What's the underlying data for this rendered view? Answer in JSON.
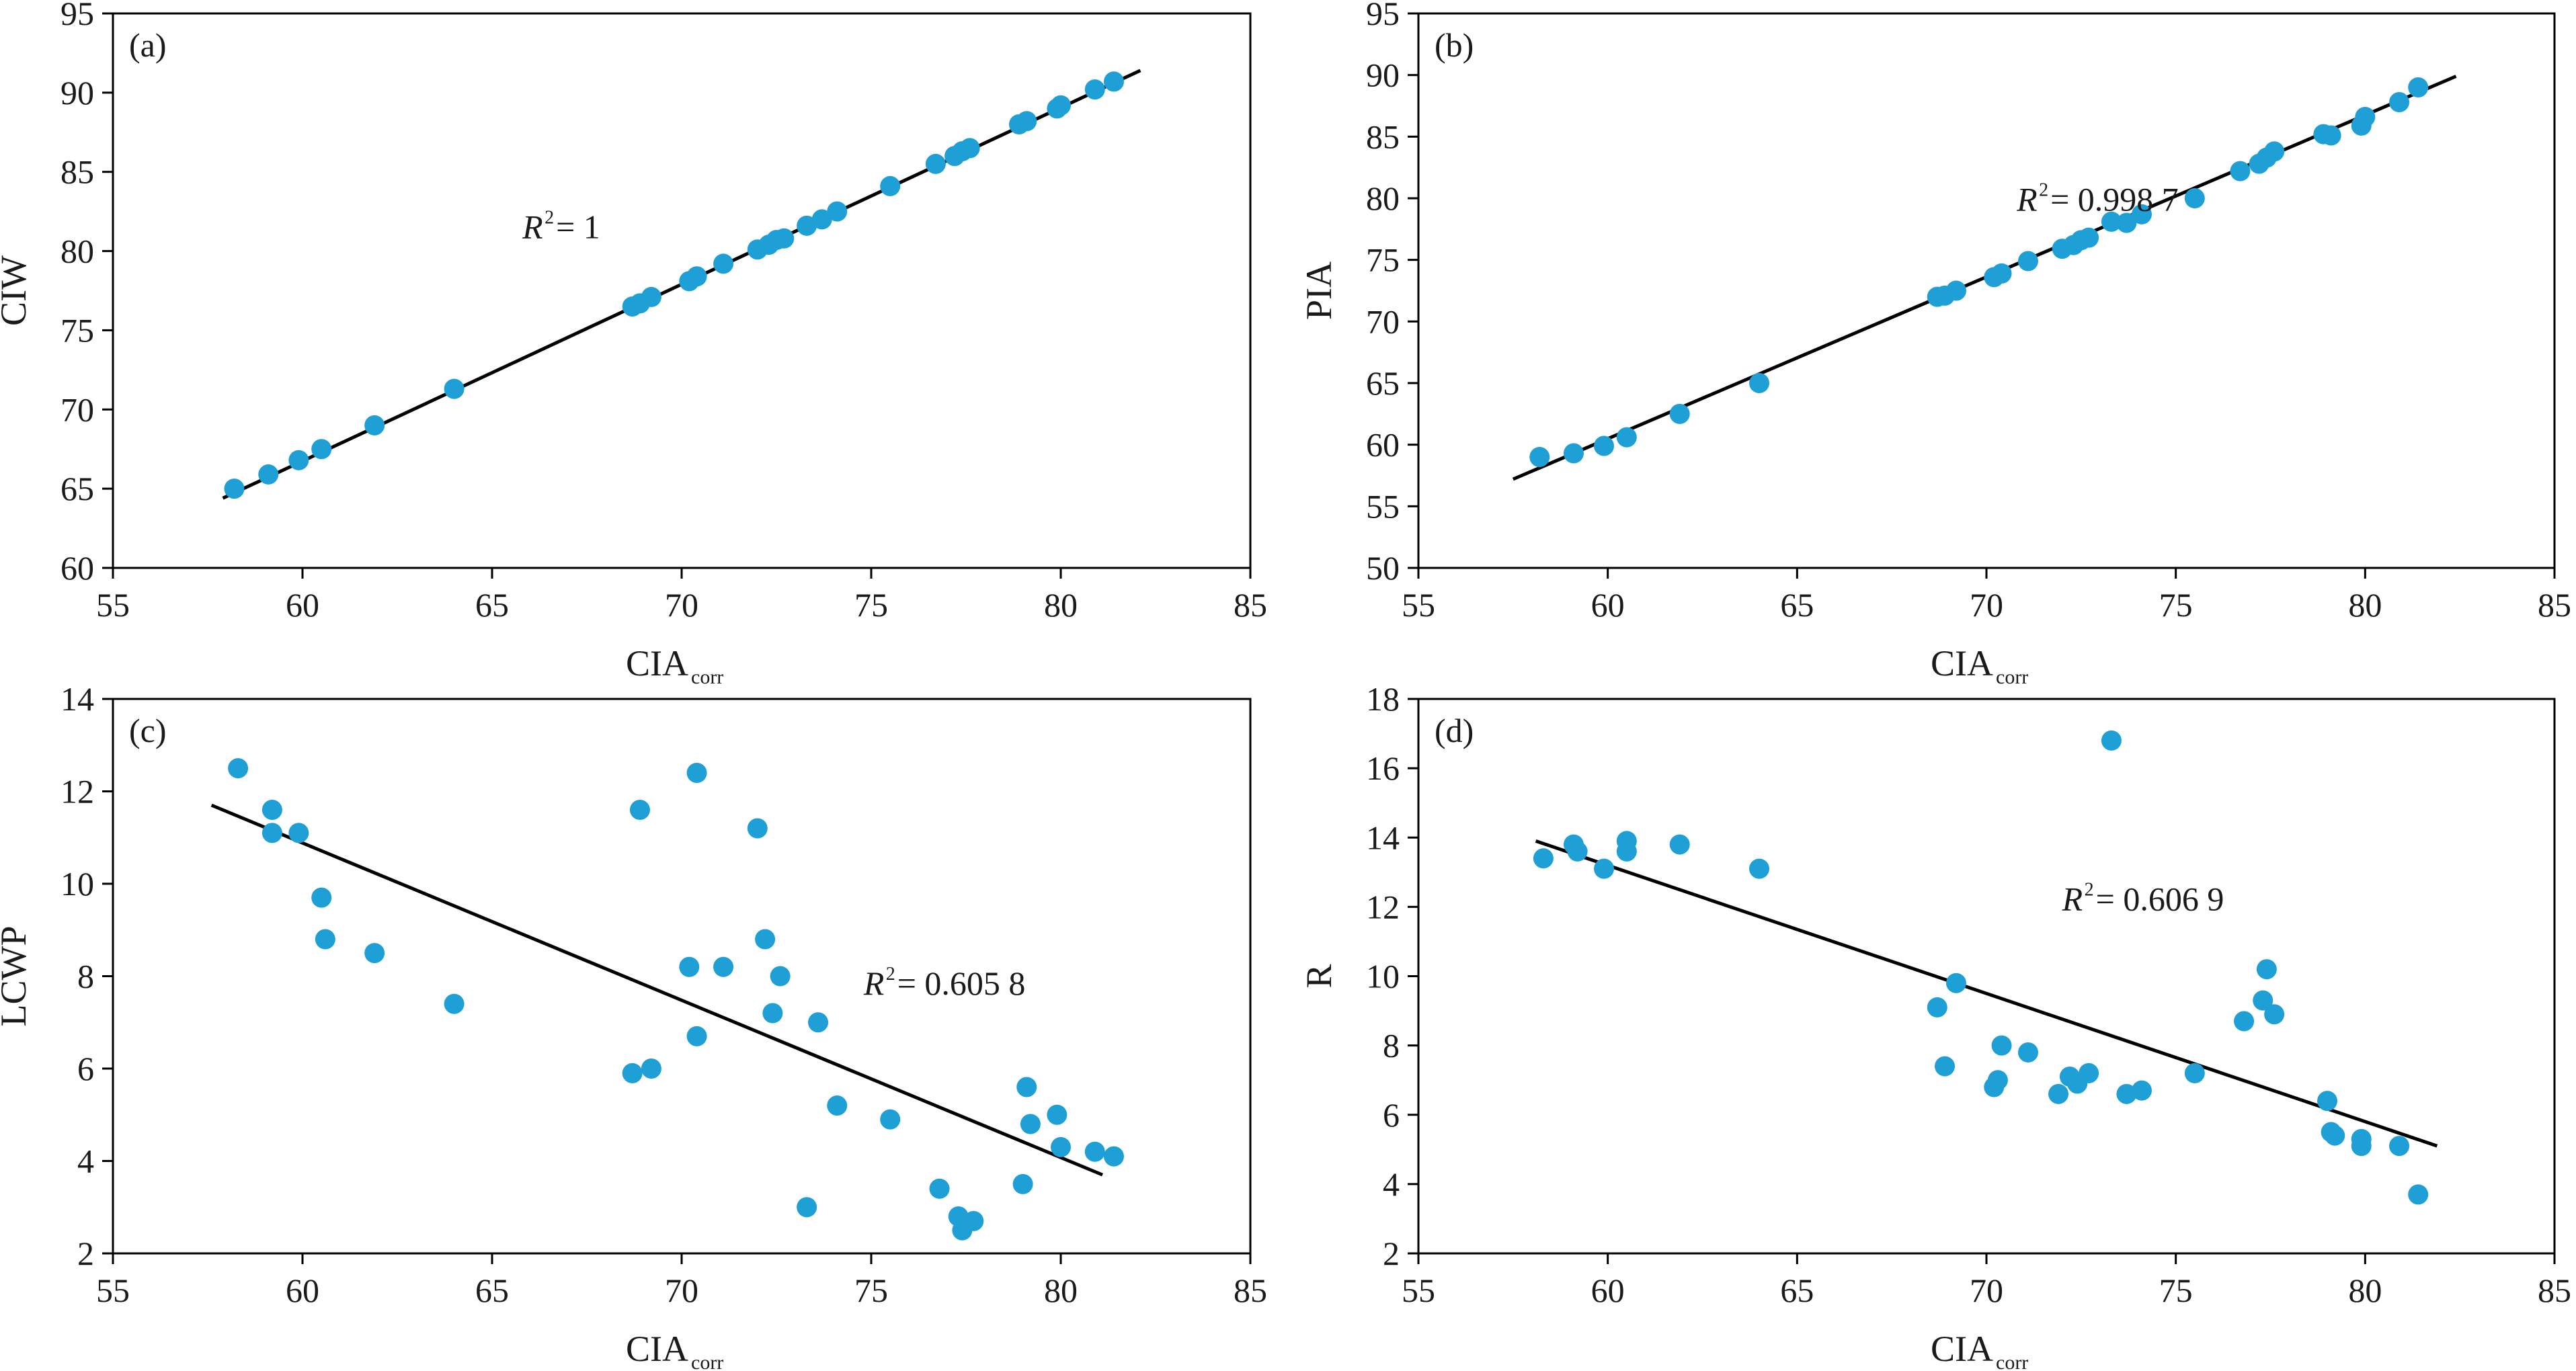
{
  "colors": {
    "point": "#1e9fd6",
    "line": "#000000",
    "frame": "#000000"
  },
  "chart_data": [
    {
      "type": "scatter",
      "panel_label": "(a)",
      "xlabel": "CIA",
      "xlabel_sub": "corr",
      "ylabel": "CIW",
      "xlim": [
        55,
        85
      ],
      "ylim": [
        60,
        95
      ],
      "xticks": [
        55,
        60,
        65,
        70,
        75,
        80,
        85
      ],
      "yticks": [
        60,
        65,
        70,
        75,
        80,
        85,
        90,
        95
      ],
      "r2_prefix": "R",
      "r2_sup": "2",
      "r2_value": "= 1",
      "r2_pos": [
        65.8,
        80.8
      ],
      "fit": [
        [
          57.9,
          64.4
        ],
        [
          82.1,
          91.4
        ]
      ],
      "points": [
        [
          58.2,
          65.0
        ],
        [
          59.1,
          65.9
        ],
        [
          59.9,
          66.8
        ],
        [
          60.5,
          67.5
        ],
        [
          61.9,
          69.0
        ],
        [
          64.0,
          71.3
        ],
        [
          68.7,
          76.5
        ],
        [
          68.9,
          76.7
        ],
        [
          69.2,
          77.1
        ],
        [
          70.2,
          78.1
        ],
        [
          70.4,
          78.4
        ],
        [
          71.1,
          79.2
        ],
        [
          72.0,
          80.1
        ],
        [
          72.3,
          80.4
        ],
        [
          72.5,
          80.7
        ],
        [
          72.7,
          80.8
        ],
        [
          73.3,
          81.6
        ],
        [
          73.7,
          82.0
        ],
        [
          74.1,
          82.5
        ],
        [
          75.5,
          84.1
        ],
        [
          76.7,
          85.5
        ],
        [
          77.2,
          86.0
        ],
        [
          77.4,
          86.3
        ],
        [
          77.6,
          86.5
        ],
        [
          78.9,
          88.0
        ],
        [
          79.1,
          88.2
        ],
        [
          79.9,
          89.0
        ],
        [
          80.0,
          89.2
        ],
        [
          80.9,
          90.2
        ],
        [
          81.4,
          90.7
        ]
      ]
    },
    {
      "type": "scatter",
      "panel_label": "(b)",
      "xlabel": "CIA",
      "xlabel_sub": "corr",
      "ylabel": "PIA",
      "xlim": [
        55,
        85
      ],
      "ylim": [
        50,
        95
      ],
      "xticks": [
        55,
        60,
        65,
        70,
        75,
        80,
        85
      ],
      "yticks": [
        50,
        55,
        60,
        65,
        70,
        75,
        80,
        85,
        90,
        95
      ],
      "r2_prefix": "R",
      "r2_sup": "2",
      "r2_value": "= 0.998 7",
      "r2_pos": [
        70.8,
        79.0
      ],
      "fit": [
        [
          57.5,
          57.2
        ],
        [
          82.4,
          89.9
        ]
      ],
      "points": [
        [
          58.2,
          59.0
        ],
        [
          59.1,
          59.3
        ],
        [
          59.9,
          59.9
        ],
        [
          60.5,
          60.6
        ],
        [
          61.9,
          62.5
        ],
        [
          64.0,
          65.0
        ],
        [
          68.7,
          72.0
        ],
        [
          68.9,
          72.1
        ],
        [
          69.2,
          72.5
        ],
        [
          70.2,
          73.6
        ],
        [
          70.4,
          73.9
        ],
        [
          71.1,
          74.9
        ],
        [
          72.0,
          75.9
        ],
        [
          72.3,
          76.2
        ],
        [
          72.5,
          76.6
        ],
        [
          72.7,
          76.8
        ],
        [
          73.3,
          78.1
        ],
        [
          73.7,
          78.0
        ],
        [
          74.1,
          78.7
        ],
        [
          75.5,
          80.0
        ],
        [
          76.7,
          82.2
        ],
        [
          77.2,
          82.8
        ],
        [
          77.4,
          83.3
        ],
        [
          77.6,
          83.8
        ],
        [
          78.9,
          85.2
        ],
        [
          79.1,
          85.1
        ],
        [
          79.9,
          85.9
        ],
        [
          80.0,
          86.6
        ],
        [
          80.9,
          87.8
        ],
        [
          81.4,
          89.0
        ]
      ]
    },
    {
      "type": "scatter",
      "panel_label": "(c)",
      "xlabel": "CIA",
      "xlabel_sub": "corr",
      "ylabel": "LCWP",
      "xlim": [
        55,
        85
      ],
      "ylim": [
        2,
        14
      ],
      "xticks": [
        55,
        60,
        65,
        70,
        75,
        80,
        85
      ],
      "yticks": [
        2,
        4,
        6,
        8,
        10,
        12,
        14
      ],
      "r2_prefix": "R",
      "r2_sup": "2",
      "r2_value": "= 0.605 8",
      "r2_pos": [
        74.8,
        7.6
      ],
      "fit": [
        [
          57.6,
          11.7
        ],
        [
          81.1,
          3.7
        ]
      ],
      "points": [
        [
          58.3,
          12.5
        ],
        [
          59.2,
          11.6
        ],
        [
          59.2,
          11.1
        ],
        [
          59.9,
          11.1
        ],
        [
          60.5,
          9.7
        ],
        [
          60.6,
          8.8
        ],
        [
          61.9,
          8.5
        ],
        [
          64.0,
          7.4
        ],
        [
          68.7,
          5.9
        ],
        [
          68.9,
          11.6
        ],
        [
          69.2,
          6.0
        ],
        [
          70.2,
          8.2
        ],
        [
          70.4,
          12.4
        ],
        [
          70.4,
          6.7
        ],
        [
          71.1,
          8.2
        ],
        [
          72.0,
          11.2
        ],
        [
          72.2,
          8.8
        ],
        [
          72.4,
          7.2
        ],
        [
          72.6,
          8.0
        ],
        [
          73.3,
          3.0
        ],
        [
          73.6,
          7.0
        ],
        [
          74.1,
          5.2
        ],
        [
          75.5,
          4.9
        ],
        [
          76.8,
          3.4
        ],
        [
          77.3,
          2.8
        ],
        [
          77.4,
          2.5
        ],
        [
          77.7,
          2.7
        ],
        [
          79.0,
          3.5
        ],
        [
          79.1,
          5.6
        ],
        [
          79.2,
          4.8
        ],
        [
          79.9,
          5.0
        ],
        [
          80.0,
          4.3
        ],
        [
          80.9,
          4.2
        ],
        [
          81.4,
          4.1
        ]
      ]
    },
    {
      "type": "scatter",
      "panel_label": "(d)",
      "xlabel": "CIA",
      "xlabel_sub": "corr",
      "ylabel": "R",
      "xlim": [
        55,
        85
      ],
      "ylim": [
        2,
        18
      ],
      "xticks": [
        55,
        60,
        65,
        70,
        75,
        80,
        85
      ],
      "yticks": [
        2,
        4,
        6,
        8,
        10,
        12,
        14,
        16,
        18
      ],
      "r2_prefix": "R",
      "r2_sup": "2",
      "r2_value": "= 0.606 9",
      "r2_pos": [
        72.0,
        11.9
      ],
      "fit": [
        [
          58.1,
          13.9
        ],
        [
          81.9,
          5.1
        ]
      ],
      "points": [
        [
          58.3,
          13.4
        ],
        [
          59.1,
          13.8
        ],
        [
          59.2,
          13.6
        ],
        [
          59.9,
          13.1
        ],
        [
          60.5,
          13.9
        ],
        [
          60.5,
          13.6
        ],
        [
          61.9,
          13.8
        ],
        [
          64.0,
          13.1
        ],
        [
          68.7,
          9.1
        ],
        [
          68.9,
          7.4
        ],
        [
          69.2,
          9.8
        ],
        [
          70.2,
          6.8
        ],
        [
          70.3,
          7.0
        ],
        [
          70.4,
          8.0
        ],
        [
          71.1,
          7.8
        ],
        [
          71.9,
          6.6
        ],
        [
          72.2,
          7.1
        ],
        [
          72.4,
          6.9
        ],
        [
          72.7,
          7.2
        ],
        [
          73.3,
          16.8
        ],
        [
          73.7,
          6.6
        ],
        [
          74.1,
          6.7
        ],
        [
          75.5,
          7.2
        ],
        [
          76.8,
          8.7
        ],
        [
          77.3,
          9.3
        ],
        [
          77.4,
          10.2
        ],
        [
          77.6,
          8.9
        ],
        [
          79.0,
          6.4
        ],
        [
          79.1,
          5.5
        ],
        [
          79.2,
          5.4
        ],
        [
          79.9,
          5.1
        ],
        [
          79.9,
          5.3
        ],
        [
          80.9,
          5.1
        ],
        [
          81.4,
          3.7
        ]
      ]
    }
  ]
}
